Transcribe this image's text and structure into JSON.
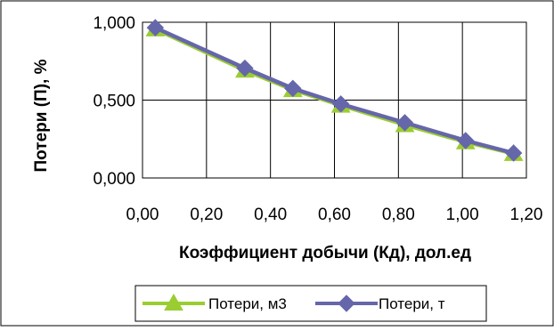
{
  "chart_data": {
    "type": "line",
    "xlabel": "Коэффициент добычи (Кд), дол.ед",
    "ylabel": "Потери (П), %",
    "xlim": [
      0,
      1.2
    ],
    "ylim": [
      0,
      1.0
    ],
    "x_ticks": [
      "0,00",
      "0,20",
      "0,40",
      "0,60",
      "0,80",
      "1,00",
      "1,20"
    ],
    "y_ticks": [
      "0,000",
      "0,500",
      "1,000"
    ],
    "grid": true,
    "legend_position": "bottom",
    "series": [
      {
        "name": "Потери, м3",
        "marker": "triangle",
        "color": "#9ACD32",
        "x": [
          0.04,
          0.32,
          0.47,
          0.62,
          0.82,
          1.01,
          1.16
        ],
        "y": [
          0.955,
          0.69,
          0.565,
          0.465,
          0.34,
          0.23,
          0.155
        ]
      },
      {
        "name": "Потери, т",
        "marker": "diamond",
        "color": "#6666AA",
        "x": [
          0.04,
          0.32,
          0.47,
          0.62,
          0.82,
          1.01,
          1.16
        ],
        "y": [
          0.965,
          0.705,
          0.575,
          0.475,
          0.355,
          0.24,
          0.16
        ]
      }
    ]
  }
}
